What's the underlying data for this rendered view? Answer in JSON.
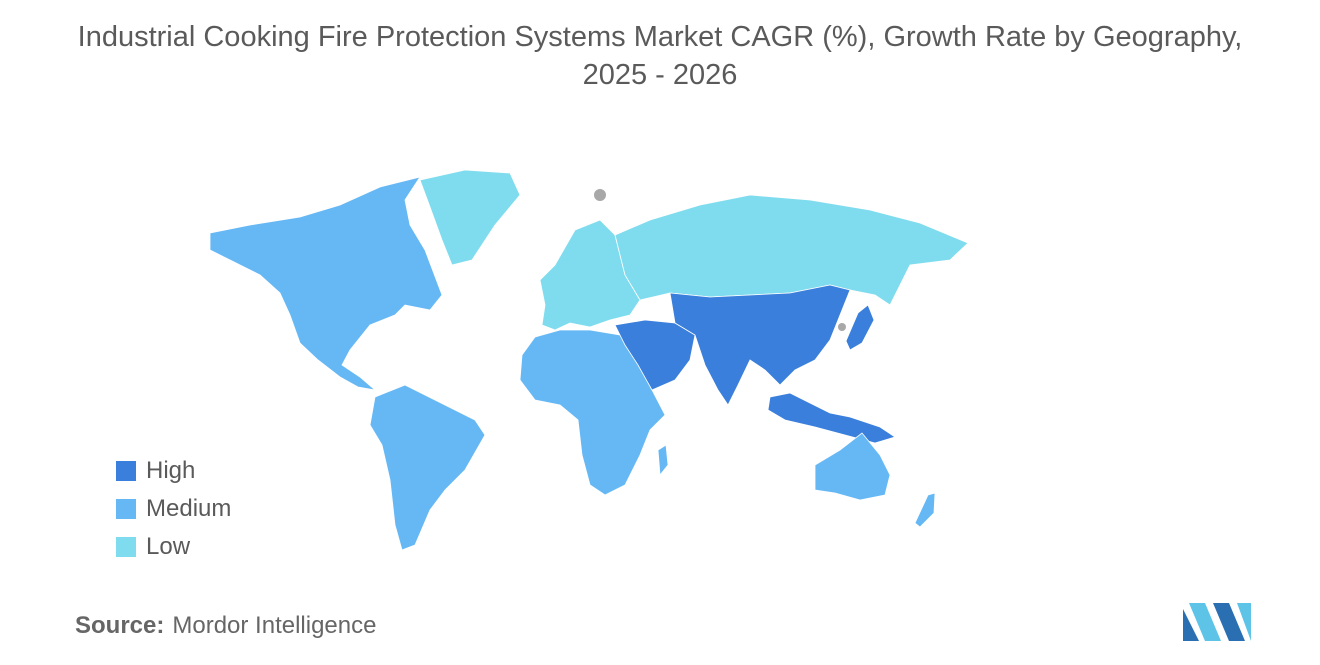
{
  "title_line1": "Industrial Cooking Fire Protection Systems Market CAGR (%), Growth Rate by Geography,",
  "title_line2": "2025 - 2026",
  "legend": [
    {
      "label": "High",
      "color": "#3a7fdc"
    },
    {
      "label": "Medium",
      "color": "#66b8f5"
    },
    {
      "label": "Low",
      "color": "#7fdcee"
    }
  ],
  "source_label": "Source:",
  "source_value": "Mordor Intelligence",
  "colors": {
    "high": "#3a7fdc",
    "medium": "#66b8f5",
    "low": "#7fdcee",
    "no_data": "#a8a8a8",
    "logo_dark": "#2b6fb3",
    "logo_light": "#5dc4e8"
  },
  "regions": [
    {
      "name": "north-america",
      "level": "medium"
    },
    {
      "name": "greenland",
      "level": "low"
    },
    {
      "name": "south-america",
      "level": "medium"
    },
    {
      "name": "europe",
      "level": "low"
    },
    {
      "name": "russia",
      "level": "low"
    },
    {
      "name": "africa",
      "level": "medium"
    },
    {
      "name": "middle-east",
      "level": "high"
    },
    {
      "name": "asia",
      "level": "high"
    },
    {
      "name": "southeast-asia",
      "level": "high"
    },
    {
      "name": "japan",
      "level": "high"
    },
    {
      "name": "australia",
      "level": "medium"
    },
    {
      "name": "new-zealand",
      "level": "medium"
    },
    {
      "name": "madagascar",
      "level": "medium"
    }
  ]
}
